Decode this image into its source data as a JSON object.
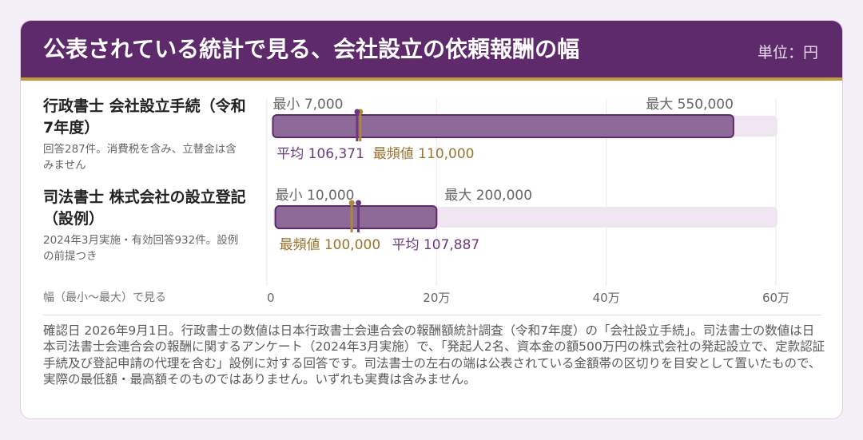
{
  "header": {
    "title": "公表されている統計で見る、会社設立の依頼報酬の幅",
    "unit": "単位：円"
  },
  "rows": [
    {
      "title": "行政書士 会社設立手続（令和7年度）",
      "note": "回答287件。消費税を含み、立替金は含みません"
    },
    {
      "title": "司法書士 株式会社の設立登記（設例）",
      "note": "2024年3月実施・有効回答932件。設例の前提つき"
    }
  ],
  "axis_caption": "幅（最小〜最大）で見る",
  "footer_note": "確認日 2026年9月1日。行政書士の数値は日本行政書士会連合会の報酬額統計調査（令和7年度）の「会社設立手続」。司法書士の数値は日本司法書士会連合会の報酬に関するアンケート（2024年3月実施）で、「発起人2名、資本金の額500万円の株式会社の発起設立で、定款認証手続及び登記申請の代理を含む」設例に対する回答です。司法書士の左右の端は公表されている金額帯の区切りを目安として置いたもので、実際の最低額・最高額そのものではありません。いずれも実費は含みません。",
  "colors": {
    "header_bg": "#5e2a6b",
    "accent_gold": "#c49a3e",
    "bar_fill": "#8e6a99",
    "bar_edge": "#5e2a6b",
    "track": "#efe6f2",
    "mean_marker": "#6b3a7c",
    "mode_marker": "#b0863a"
  },
  "chart_data": {
    "type": "range",
    "xlim": [
      0,
      600000
    ],
    "ticks": [
      {
        "value": 0,
        "label": "0"
      },
      {
        "value": 200000,
        "label": "20万"
      },
      {
        "value": 400000,
        "label": "40万"
      },
      {
        "value": 600000,
        "label": "60万"
      }
    ],
    "series": [
      {
        "min": 7000,
        "max": 550000,
        "mean": 106371,
        "mode": 110000,
        "min_label": "最小 7,000",
        "max_label": "最大 550,000",
        "mean_label": "平均 106,371",
        "mode_label": "最頻値 110,000"
      },
      {
        "min": 10000,
        "max": 200000,
        "mean": 107887,
        "mode": 100000,
        "min_label": "最小 10,000",
        "max_label": "最大 200,000",
        "mean_label": "平均 107,887",
        "mode_label": "最頻値 100,000"
      }
    ]
  }
}
